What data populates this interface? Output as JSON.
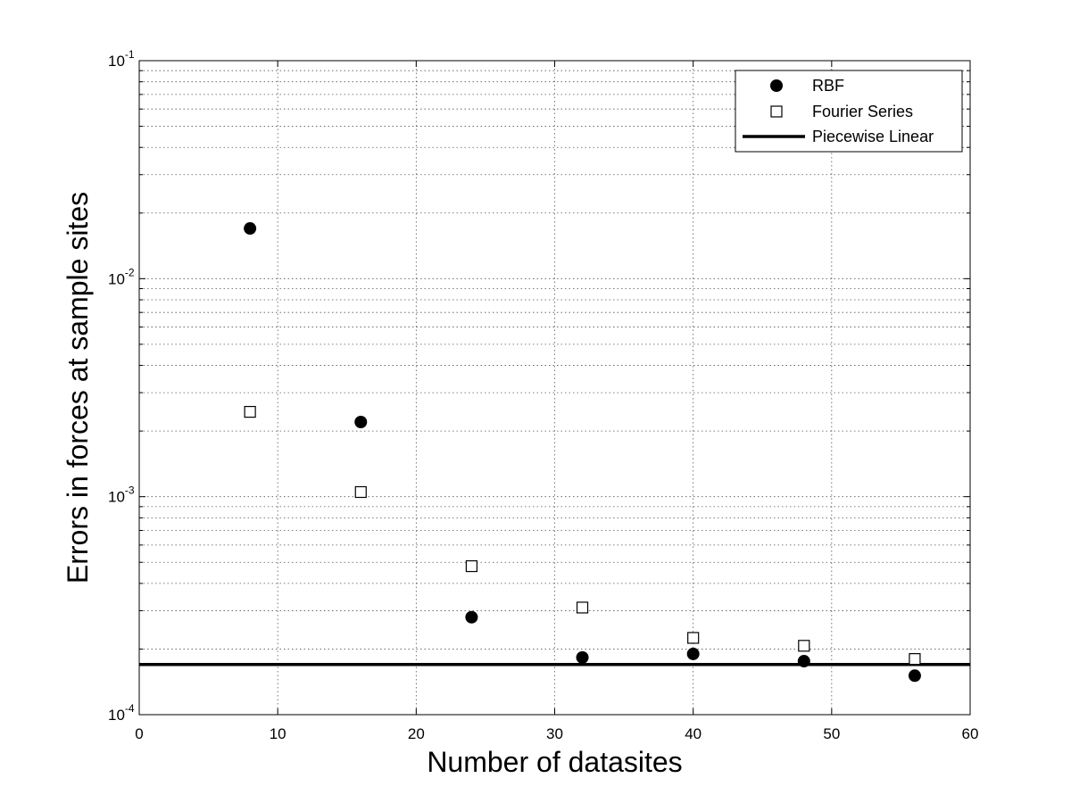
{
  "chart_data": {
    "type": "scatter",
    "title": "",
    "xlabel": "Number of datasites",
    "ylabel": "Errors in forces at sample sites",
    "xlim": [
      0,
      60
    ],
    "ylim": [
      0.0001,
      0.1
    ],
    "y_scale": "log",
    "grid": true,
    "legend_position": "top-right",
    "x_ticks": [
      "0",
      "10",
      "20",
      "30",
      "40",
      "50",
      "60"
    ],
    "x_tick_values": [
      0,
      10,
      20,
      30,
      40,
      50,
      60
    ],
    "y_ticks": [
      {
        "value": 0.0001,
        "base": "10",
        "exp": "-4"
      },
      {
        "value": 0.001,
        "base": "10",
        "exp": "-3"
      },
      {
        "value": 0.01,
        "base": "10",
        "exp": "-2"
      },
      {
        "value": 0.1,
        "base": "10",
        "exp": "-1"
      }
    ],
    "series": [
      {
        "name": "RBF",
        "marker": "filled-circle",
        "color": "#000000",
        "x": [
          8,
          16,
          24,
          32,
          40,
          48,
          56
        ],
        "y": [
          0.017,
          0.0022,
          0.00028,
          0.000183,
          0.00019,
          0.000176,
          0.000151
        ]
      },
      {
        "name": "Fourier Series",
        "marker": "open-square",
        "color": "#000000",
        "x": [
          8,
          16,
          24,
          32,
          40,
          48,
          56
        ],
        "y": [
          0.00245,
          0.00105,
          0.00048,
          0.00031,
          0.000225,
          0.000207,
          0.00018
        ]
      },
      {
        "name": "Piecewise Linear",
        "marker": "line",
        "color": "#000000",
        "x": [
          0,
          60
        ],
        "y": [
          0.00017,
          0.00017
        ]
      }
    ]
  }
}
